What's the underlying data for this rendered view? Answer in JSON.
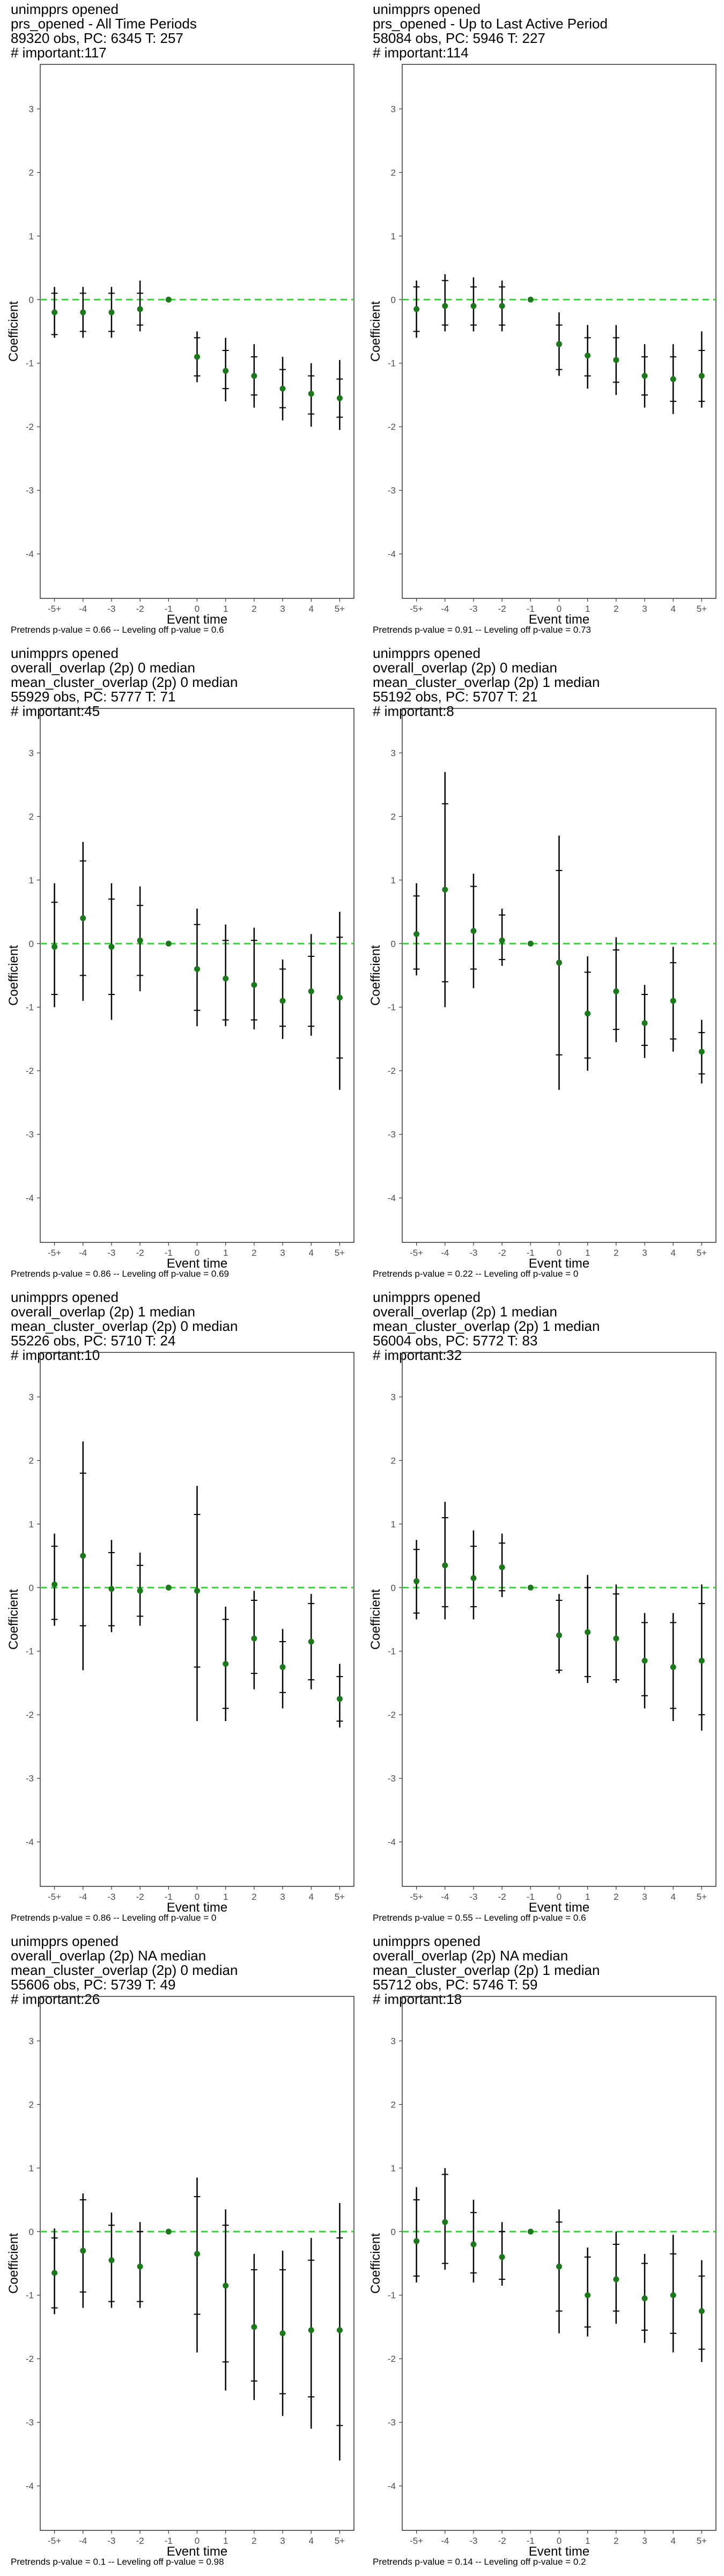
{
  "chart_data": [
    {
      "type": "scatter",
      "title": [
        " unimpprs opened",
        "prs_opened - All Time Periods",
        "89320 obs, PC: 6345 T: 257",
        "# important:117"
      ],
      "xlabel": "Event time",
      "ylabel": "Coefficient",
      "ylim": [
        -4.7,
        3.7
      ],
      "yticks": [
        -4,
        -3,
        -2,
        -1,
        0,
        1,
        2,
        3
      ],
      "categories": [
        "-5+",
        "-4",
        "-3",
        "-2",
        "-1",
        "0",
        "1",
        "2",
        "3",
        "4",
        "5+"
      ],
      "values": [
        -0.2,
        -0.2,
        -0.2,
        -0.15,
        0,
        -0.9,
        -1.12,
        -1.2,
        -1.4,
        -1.48,
        -1.55
      ],
      "ci_inner": [
        [
          -0.55,
          0.1
        ],
        [
          -0.5,
          0.1
        ],
        [
          -0.5,
          0.1
        ],
        [
          -0.4,
          0.1
        ],
        [
          0,
          0
        ],
        [
          -1.2,
          -0.6
        ],
        [
          -1.4,
          -0.8
        ],
        [
          -1.5,
          -0.9
        ],
        [
          -1.7,
          -1.1
        ],
        [
          -1.8,
          -1.2
        ],
        [
          -1.85,
          -1.25
        ]
      ],
      "ci_outer": [
        [
          -0.6,
          0.2
        ],
        [
          -0.6,
          0.2
        ],
        [
          -0.6,
          0.2
        ],
        [
          -0.5,
          0.3
        ],
        [
          0,
          0
        ],
        [
          -1.3,
          -0.5
        ],
        [
          -1.6,
          -0.6
        ],
        [
          -1.7,
          -0.7
        ],
        [
          -1.9,
          -0.9
        ],
        [
          -2.0,
          -1.0
        ],
        [
          -2.05,
          -0.95
        ]
      ],
      "reference_line": 0,
      "grid": false,
      "footnote": "Pretrends p-value = 0.66 -- Leveling off p-value = 0.6"
    },
    {
      "type": "scatter",
      "title": [
        " unimpprs opened",
        "prs_opened - Up to Last Active Period",
        "58084 obs, PC: 5946 T: 227",
        "# important:114"
      ],
      "xlabel": "Event time",
      "ylabel": "Coefficient",
      "ylim": [
        -4.7,
        3.7
      ],
      "yticks": [
        -4,
        -3,
        -2,
        -1,
        0,
        1,
        2,
        3
      ],
      "categories": [
        "-5+",
        "-4",
        "-3",
        "-2",
        "-1",
        "0",
        "1",
        "2",
        "3",
        "4",
        "5+"
      ],
      "values": [
        -0.15,
        -0.1,
        -0.1,
        -0.1,
        0,
        -0.7,
        -0.88,
        -0.95,
        -1.2,
        -1.25,
        -1.2
      ],
      "ci_inner": [
        [
          -0.5,
          0.2
        ],
        [
          -0.4,
          0.3
        ],
        [
          -0.4,
          0.2
        ],
        [
          -0.4,
          0.2
        ],
        [
          0,
          0
        ],
        [
          -1.1,
          -0.4
        ],
        [
          -1.2,
          -0.6
        ],
        [
          -1.3,
          -0.6
        ],
        [
          -1.5,
          -0.9
        ],
        [
          -1.6,
          -0.9
        ],
        [
          -1.6,
          -0.8
        ]
      ],
      "ci_outer": [
        [
          -0.6,
          0.3
        ],
        [
          -0.5,
          0.4
        ],
        [
          -0.5,
          0.35
        ],
        [
          -0.5,
          0.3
        ],
        [
          0,
          0
        ],
        [
          -1.2,
          -0.2
        ],
        [
          -1.4,
          -0.4
        ],
        [
          -1.5,
          -0.4
        ],
        [
          -1.7,
          -0.7
        ],
        [
          -1.8,
          -0.7
        ],
        [
          -1.7,
          -0.5
        ]
      ],
      "reference_line": 0,
      "grid": false,
      "footnote": "Pretrends p-value = 0.91 -- Leveling off p-value = 0.73"
    },
    {
      "type": "scatter",
      "title": [
        " unimpprs opened",
        "overall_overlap (2p) 0 median",
        "mean_cluster_overlap (2p) 0 median",
        "55929 obs, PC: 5777 T: 71",
        "# important:45"
      ],
      "xlabel": "Event time",
      "ylabel": "Coefficient",
      "ylim": [
        -4.7,
        3.7
      ],
      "yticks": [
        -4,
        -3,
        -2,
        -1,
        0,
        1,
        2,
        3
      ],
      "categories": [
        "-5+",
        "-4",
        "-3",
        "-2",
        "-1",
        "0",
        "1",
        "2",
        "3",
        "4",
        "5+"
      ],
      "values": [
        -0.05,
        0.4,
        -0.05,
        0.05,
        0,
        -0.4,
        -0.55,
        -0.65,
        -0.9,
        -0.75,
        -0.85
      ],
      "ci_inner": [
        [
          -0.8,
          0.65
        ],
        [
          -0.5,
          1.3
        ],
        [
          -0.8,
          0.7
        ],
        [
          -0.5,
          0.6
        ],
        [
          0,
          0
        ],
        [
          -1.05,
          0.3
        ],
        [
          -1.2,
          0.05
        ],
        [
          -1.2,
          0.05
        ],
        [
          -1.3,
          -0.4
        ],
        [
          -1.3,
          -0.2
        ],
        [
          -1.8,
          0.1
        ]
      ],
      "ci_outer": [
        [
          -1.0,
          0.95
        ],
        [
          -0.9,
          1.6
        ],
        [
          -1.2,
          0.95
        ],
        [
          -0.75,
          0.9
        ],
        [
          0,
          0
        ],
        [
          -1.3,
          0.55
        ],
        [
          -1.3,
          0.3
        ],
        [
          -1.35,
          0.25
        ],
        [
          -1.5,
          -0.25
        ],
        [
          -1.45,
          0.15
        ],
        [
          -2.3,
          0.5
        ]
      ],
      "reference_line": 0,
      "grid": false,
      "footnote": "Pretrends p-value = 0.86 -- Leveling off p-value = 0.69"
    },
    {
      "type": "scatter",
      "title": [
        " unimpprs opened",
        "overall_overlap (2p) 0 median",
        "mean_cluster_overlap (2p) 1 median",
        "55192 obs, PC: 5707 T: 21",
        "# important:8"
      ],
      "xlabel": "Event time",
      "ylabel": "Coefficient",
      "ylim": [
        -4.7,
        3.7
      ],
      "yticks": [
        -4,
        -3,
        -2,
        -1,
        0,
        1,
        2,
        3
      ],
      "categories": [
        "-5+",
        "-4",
        "-3",
        "-2",
        "-1",
        "0",
        "1",
        "2",
        "3",
        "4",
        "5+"
      ],
      "values": [
        0.15,
        0.85,
        0.2,
        0.05,
        0,
        -0.3,
        -1.1,
        -0.75,
        -1.25,
        -0.9,
        -1.7
      ],
      "ci_inner": [
        [
          -0.4,
          0.75
        ],
        [
          -0.6,
          2.2
        ],
        [
          -0.4,
          0.9
        ],
        [
          -0.25,
          0.45
        ],
        [
          0,
          0
        ],
        [
          -1.75,
          1.15
        ],
        [
          -1.8,
          -0.45
        ],
        [
          -1.35,
          -0.1
        ],
        [
          -1.6,
          -0.8
        ],
        [
          -1.5,
          -0.3
        ],
        [
          -2.05,
          -1.4
        ]
      ],
      "ci_outer": [
        [
          -0.5,
          0.95
        ],
        [
          -1.0,
          2.7
        ],
        [
          -0.7,
          1.1
        ],
        [
          -0.35,
          0.55
        ],
        [
          0,
          0
        ],
        [
          -2.3,
          1.7
        ],
        [
          -2.0,
          -0.2
        ],
        [
          -1.55,
          0.1
        ],
        [
          -1.8,
          -0.65
        ],
        [
          -1.7,
          -0.05
        ],
        [
          -2.2,
          -1.2
        ]
      ],
      "reference_line": 0,
      "grid": false,
      "footnote": "Pretrends p-value = 0.22 -- Leveling off p-value = 0"
    },
    {
      "type": "scatter",
      "title": [
        " unimpprs opened",
        "overall_overlap (2p) 1 median",
        "mean_cluster_overlap (2p) 0 median",
        "55226 obs, PC: 5710 T: 24",
        "# important:10"
      ],
      "xlabel": "Event time",
      "ylabel": "Coefficient",
      "ylim": [
        -4.7,
        3.7
      ],
      "yticks": [
        -4,
        -3,
        -2,
        -1,
        0,
        1,
        2,
        3
      ],
      "categories": [
        "-5+",
        "-4",
        "-3",
        "-2",
        "-1",
        "0",
        "1",
        "2",
        "3",
        "4",
        "5+"
      ],
      "values": [
        0.05,
        0.5,
        -0.02,
        -0.05,
        0,
        -0.05,
        -1.2,
        -0.8,
        -1.25,
        -0.85,
        -1.75
      ],
      "ci_inner": [
        [
          -0.5,
          0.65
        ],
        [
          -0.6,
          1.8
        ],
        [
          -0.6,
          0.55
        ],
        [
          -0.45,
          0.35
        ],
        [
          0,
          0
        ],
        [
          -1.25,
          1.15
        ],
        [
          -1.9,
          -0.5
        ],
        [
          -1.35,
          -0.2
        ],
        [
          -1.65,
          -0.85
        ],
        [
          -1.45,
          -0.25
        ],
        [
          -2.1,
          -1.4
        ]
      ],
      "ci_outer": [
        [
          -0.6,
          0.85
        ],
        [
          -1.3,
          2.3
        ],
        [
          -0.7,
          0.75
        ],
        [
          -0.6,
          0.55
        ],
        [
          0,
          0
        ],
        [
          -2.1,
          1.6
        ],
        [
          -2.1,
          -0.3
        ],
        [
          -1.6,
          -0.05
        ],
        [
          -1.9,
          -0.65
        ],
        [
          -1.6,
          -0.1
        ],
        [
          -2.2,
          -1.2
        ]
      ],
      "reference_line": 0,
      "grid": false,
      "footnote": "Pretrends p-value = 0.86 -- Leveling off p-value = 0"
    },
    {
      "type": "scatter",
      "title": [
        " unimpprs opened",
        "overall_overlap (2p) 1 median",
        "mean_cluster_overlap (2p) 1 median",
        "56004 obs, PC: 5772 T: 83",
        "# important:32"
      ],
      "xlabel": "Event time",
      "ylabel": "Coefficient",
      "ylim": [
        -4.7,
        3.7
      ],
      "yticks": [
        -4,
        -3,
        -2,
        -1,
        0,
        1,
        2,
        3
      ],
      "categories": [
        "-5+",
        "-4",
        "-3",
        "-2",
        "-1",
        "0",
        "1",
        "2",
        "3",
        "4",
        "5+"
      ],
      "values": [
        0.1,
        0.35,
        0.15,
        0.32,
        0,
        -0.75,
        -0.7,
        -0.8,
        -1.15,
        -1.25,
        -1.15
      ],
      "ci_inner": [
        [
          -0.4,
          0.6
        ],
        [
          -0.3,
          1.1
        ],
        [
          -0.3,
          0.65
        ],
        [
          -0.05,
          0.7
        ],
        [
          0,
          0
        ],
        [
          -1.3,
          -0.2
        ],
        [
          -1.4,
          0.0
        ],
        [
          -1.45,
          -0.1
        ],
        [
          -1.7,
          -0.55
        ],
        [
          -1.9,
          -0.55
        ],
        [
          -2.0,
          -0.25
        ]
      ],
      "ci_outer": [
        [
          -0.5,
          0.75
        ],
        [
          -0.5,
          1.35
        ],
        [
          -0.5,
          0.9
        ],
        [
          -0.15,
          0.85
        ],
        [
          0,
          0
        ],
        [
          -1.35,
          -0.1
        ],
        [
          -1.5,
          0.2
        ],
        [
          -1.5,
          0.05
        ],
        [
          -1.9,
          -0.4
        ],
        [
          -2.1,
          -0.4
        ],
        [
          -2.25,
          0.05
        ]
      ],
      "reference_line": 0,
      "grid": false,
      "footnote": "Pretrends p-value = 0.55 -- Leveling off p-value = 0.6"
    },
    {
      "type": "scatter",
      "title": [
        " unimpprs opened",
        "overall_overlap (2p) NA median",
        "mean_cluster_overlap (2p) 0 median",
        "55606 obs, PC: 5739 T: 49",
        "# important:26"
      ],
      "xlabel": "Event time",
      "ylabel": "Coefficient",
      "ylim": [
        -4.7,
        3.7
      ],
      "yticks": [
        -4,
        -3,
        -2,
        -1,
        0,
        1,
        2,
        3
      ],
      "categories": [
        "-5+",
        "-4",
        "-3",
        "-2",
        "-1",
        "0",
        "1",
        "2",
        "3",
        "4",
        "5+"
      ],
      "values": [
        -0.65,
        -0.3,
        -0.45,
        -0.55,
        0,
        -0.35,
        -0.85,
        -1.5,
        -1.6,
        -1.55,
        -1.55
      ],
      "ci_inner": [
        [
          -1.2,
          -0.1
        ],
        [
          -0.95,
          0.5
        ],
        [
          -1.1,
          0.1
        ],
        [
          -1.1,
          0.0
        ],
        [
          0,
          0
        ],
        [
          -1.3,
          0.55
        ],
        [
          -2.05,
          0.1
        ],
        [
          -2.35,
          -0.6
        ],
        [
          -2.55,
          -0.6
        ],
        [
          -2.6,
          -0.45
        ],
        [
          -3.05,
          -0.1
        ]
      ],
      "ci_outer": [
        [
          -1.3,
          0.05
        ],
        [
          -1.2,
          0.6
        ],
        [
          -1.2,
          0.3
        ],
        [
          -1.2,
          0.15
        ],
        [
          0,
          0
        ],
        [
          -1.9,
          0.85
        ],
        [
          -2.5,
          0.35
        ],
        [
          -2.65,
          -0.35
        ],
        [
          -2.9,
          -0.3
        ],
        [
          -3.1,
          -0.1
        ],
        [
          -3.6,
          0.45
        ]
      ],
      "reference_line": 0,
      "grid": false,
      "footnote": "Pretrends p-value = 0.1 -- Leveling off p-value = 0.98"
    },
    {
      "type": "scatter",
      "title": [
        " unimpprs opened",
        "overall_overlap (2p) NA median",
        "mean_cluster_overlap (2p) 1 median",
        "55712 obs, PC: 5746 T: 59",
        "# important:18"
      ],
      "xlabel": "Event time",
      "ylabel": "Coefficient",
      "ylim": [
        -4.7,
        3.7
      ],
      "yticks": [
        -4,
        -3,
        -2,
        -1,
        0,
        1,
        2,
        3
      ],
      "categories": [
        "-5+",
        "-4",
        "-3",
        "-2",
        "-1",
        "0",
        "1",
        "2",
        "3",
        "4",
        "5+"
      ],
      "values": [
        -0.15,
        0.15,
        -0.2,
        -0.4,
        0,
        -0.55,
        -1.0,
        -0.75,
        -1.05,
        -1.0,
        -1.25
      ],
      "ci_inner": [
        [
          -0.7,
          0.5
        ],
        [
          -0.5,
          0.9
        ],
        [
          -0.65,
          0.3
        ],
        [
          -0.75,
          0.0
        ],
        [
          0,
          0
        ],
        [
          -1.25,
          0.15
        ],
        [
          -1.5,
          -0.4
        ],
        [
          -1.25,
          -0.2
        ],
        [
          -1.55,
          -0.5
        ],
        [
          -1.6,
          -0.35
        ],
        [
          -1.85,
          -0.7
        ]
      ],
      "ci_outer": [
        [
          -0.8,
          0.7
        ],
        [
          -0.6,
          1.0
        ],
        [
          -0.8,
          0.5
        ],
        [
          -0.85,
          0.15
        ],
        [
          0,
          0
        ],
        [
          -1.6,
          0.35
        ],
        [
          -1.65,
          -0.25
        ],
        [
          -1.45,
          0.0
        ],
        [
          -1.75,
          -0.35
        ],
        [
          -1.9,
          -0.05
        ],
        [
          -2.05,
          -0.45
        ]
      ],
      "reference_line": 0,
      "grid": false,
      "footnote": "Pretrends p-value = 0.14 -- Leveling off p-value = 0.2"
    }
  ],
  "colors": {
    "point": "#1a7a1a",
    "reference_line": "#22e022",
    "error_bar": "#000000",
    "panel_border": "#333333",
    "tick_text": "#4d4d4d"
  }
}
